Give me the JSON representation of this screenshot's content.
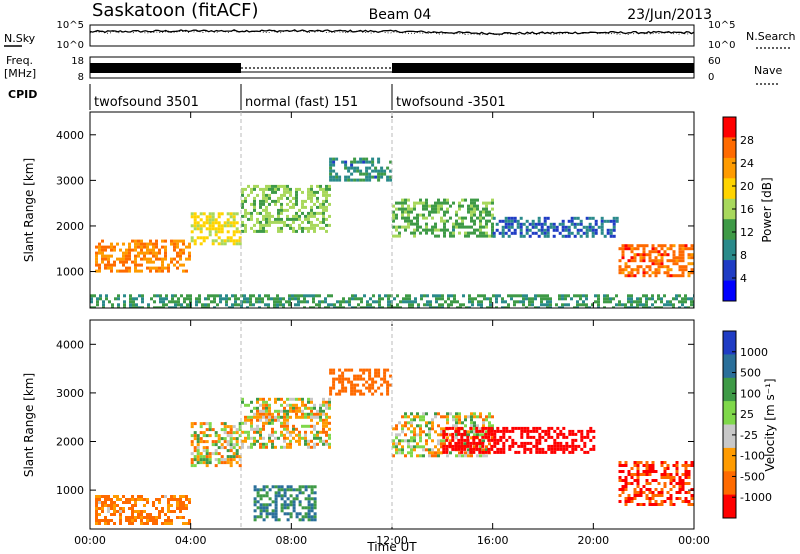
{
  "header": {
    "station": "Saskatoon (fitACF)",
    "beam": "Beam 04",
    "date": "23/Jun/2013"
  },
  "colors": {
    "background": "#ffffff",
    "axis": "#000000",
    "gap_grey": "#c0c0c0"
  },
  "chart_data": [
    {
      "type": "line",
      "panel": "noise",
      "left_label": "N.Sky",
      "right_label": "N.Search",
      "left_ticks": [
        "10^5",
        "10^0"
      ],
      "right_ticks": [
        "10^5",
        "10^0"
      ],
      "x": [
        "00:00",
        "04:00",
        "08:00",
        "12:00",
        "16:00",
        "20:00",
        "00:00"
      ],
      "series": [
        {
          "name": "N.Sky",
          "style": "solid",
          "values": [
            3.4,
            3.6,
            3.6,
            3.5,
            3.0,
            3.2,
            3.2
          ]
        },
        {
          "name": "N.Search",
          "style": "dotted",
          "values": [
            3.2,
            3.4,
            3.4,
            3.3,
            2.8,
            3.0,
            3.0
          ]
        }
      ]
    },
    {
      "type": "line",
      "panel": "frequency",
      "left_label_1": "Freq.",
      "left_label_2": "[MHz]",
      "right_label": "Nave",
      "left_ticks": [
        "18",
        "8"
      ],
      "right_ticks": [
        "60",
        "0"
      ],
      "segments": [
        {
          "start_hour": 0,
          "end_hour": 6,
          "mode": "twofsound"
        },
        {
          "start_hour": 6,
          "end_hour": 12,
          "mode": "normal"
        },
        {
          "start_hour": 12,
          "end_hour": 24,
          "mode": "twofsound"
        }
      ]
    },
    {
      "type": "table",
      "panel": "cpid",
      "label": "CPID",
      "segments": [
        {
          "text": "twofsound 3501",
          "start_hour": 0,
          "end_hour": 6
        },
        {
          "text": "normal (fast) 151",
          "start_hour": 6,
          "end_hour": 12
        },
        {
          "text": "twofsound -3501",
          "start_hour": 12,
          "end_hour": 24
        }
      ]
    },
    {
      "type": "heatmap",
      "panel": "power",
      "ylabel": "Slant Range [km]",
      "xlabel": "",
      "ylim": [
        200,
        4500
      ],
      "yticks": [
        "1000",
        "2000",
        "3000",
        "4000"
      ],
      "ytick_values": [
        1000,
        2000,
        3000,
        4000
      ],
      "xlim": [
        0,
        24
      ],
      "colorbar_label": "Power [dB]",
      "colorbar_ticks": [
        "28",
        "24",
        "20",
        "16",
        "12",
        "8",
        "4"
      ],
      "colorbar_colors": [
        "#ff0000",
        "#ff6a00",
        "#ff9b00",
        "#ffd400",
        "#a8d85c",
        "#3e9a46",
        "#2a8a8a",
        "#1f3cc4",
        "#0000ff"
      ],
      "features": [
        {
          "hours": [
            0.2,
            4.0
          ],
          "range_km": [
            1000,
            1700
          ],
          "value": 24
        },
        {
          "hours": [
            4.0,
            6.0
          ],
          "range_km": [
            1600,
            2300
          ],
          "value": 18
        },
        {
          "hours": [
            6.0,
            9.5
          ],
          "range_km": [
            1900,
            2900
          ],
          "value": 14
        },
        {
          "hours": [
            9.5,
            12.0
          ],
          "range_km": [
            3000,
            3500
          ],
          "value": 8
        },
        {
          "hours": [
            12.0,
            16.0
          ],
          "range_km": [
            1800,
            2600
          ],
          "value": 12
        },
        {
          "hours": [
            16.0,
            21.0
          ],
          "range_km": [
            1800,
            2200
          ],
          "value": 6
        },
        {
          "hours": [
            21.0,
            24.0
          ],
          "range_km": [
            900,
            1600
          ],
          "value": 26
        },
        {
          "hours": [
            0.0,
            24.0
          ],
          "range_km": [
            200,
            500
          ],
          "value": 10
        }
      ]
    },
    {
      "type": "heatmap",
      "panel": "velocity",
      "ylabel": "Slant Range [km]",
      "xlabel": "Time UT",
      "ylim": [
        200,
        4500
      ],
      "yticks": [
        "1000",
        "2000",
        "3000",
        "4000"
      ],
      "ytick_values": [
        1000,
        2000,
        3000,
        4000
      ],
      "xlim": [
        0,
        24
      ],
      "xticks": [
        "00:00",
        "04:00",
        "08:00",
        "12:00",
        "16:00",
        "20:00",
        "00:00"
      ],
      "colorbar_label": "Velocity [m s⁻¹]",
      "colorbar_ticks": [
        "1000",
        "500",
        "100",
        "25",
        "-25",
        "-100",
        "-500",
        "-1000"
      ],
      "colorbar_colors": [
        "#1f3cc4",
        "#2a6f9a",
        "#3e9a46",
        "#7fd84a",
        "#c8c8c8",
        "#ff9b00",
        "#ff6a00",
        "#ff0000"
      ],
      "features": [
        {
          "hours": [
            0.2,
            4.0
          ],
          "range_km": [
            300,
            900
          ],
          "value": -100
        },
        {
          "hours": [
            4.0,
            6.0
          ],
          "range_km": [
            1500,
            2400
          ],
          "value": 0
        },
        {
          "hours": [
            6.0,
            9.5
          ],
          "range_km": [
            1900,
            2900
          ],
          "value": 0
        },
        {
          "hours": [
            9.5,
            12.0
          ],
          "range_km": [
            3000,
            3500
          ],
          "value": -200
        },
        {
          "hours": [
            12.0,
            16.0
          ],
          "range_km": [
            1700,
            2600
          ],
          "value": 0
        },
        {
          "hours": [
            14.0,
            20.0
          ],
          "range_km": [
            1800,
            2300
          ],
          "value": -600
        },
        {
          "hours": [
            21.0,
            24.0
          ],
          "range_km": [
            700,
            1600
          ],
          "value": -300
        },
        {
          "hours": [
            6.5,
            9.0
          ],
          "range_km": [
            400,
            1100
          ],
          "value": 300
        }
      ]
    }
  ]
}
